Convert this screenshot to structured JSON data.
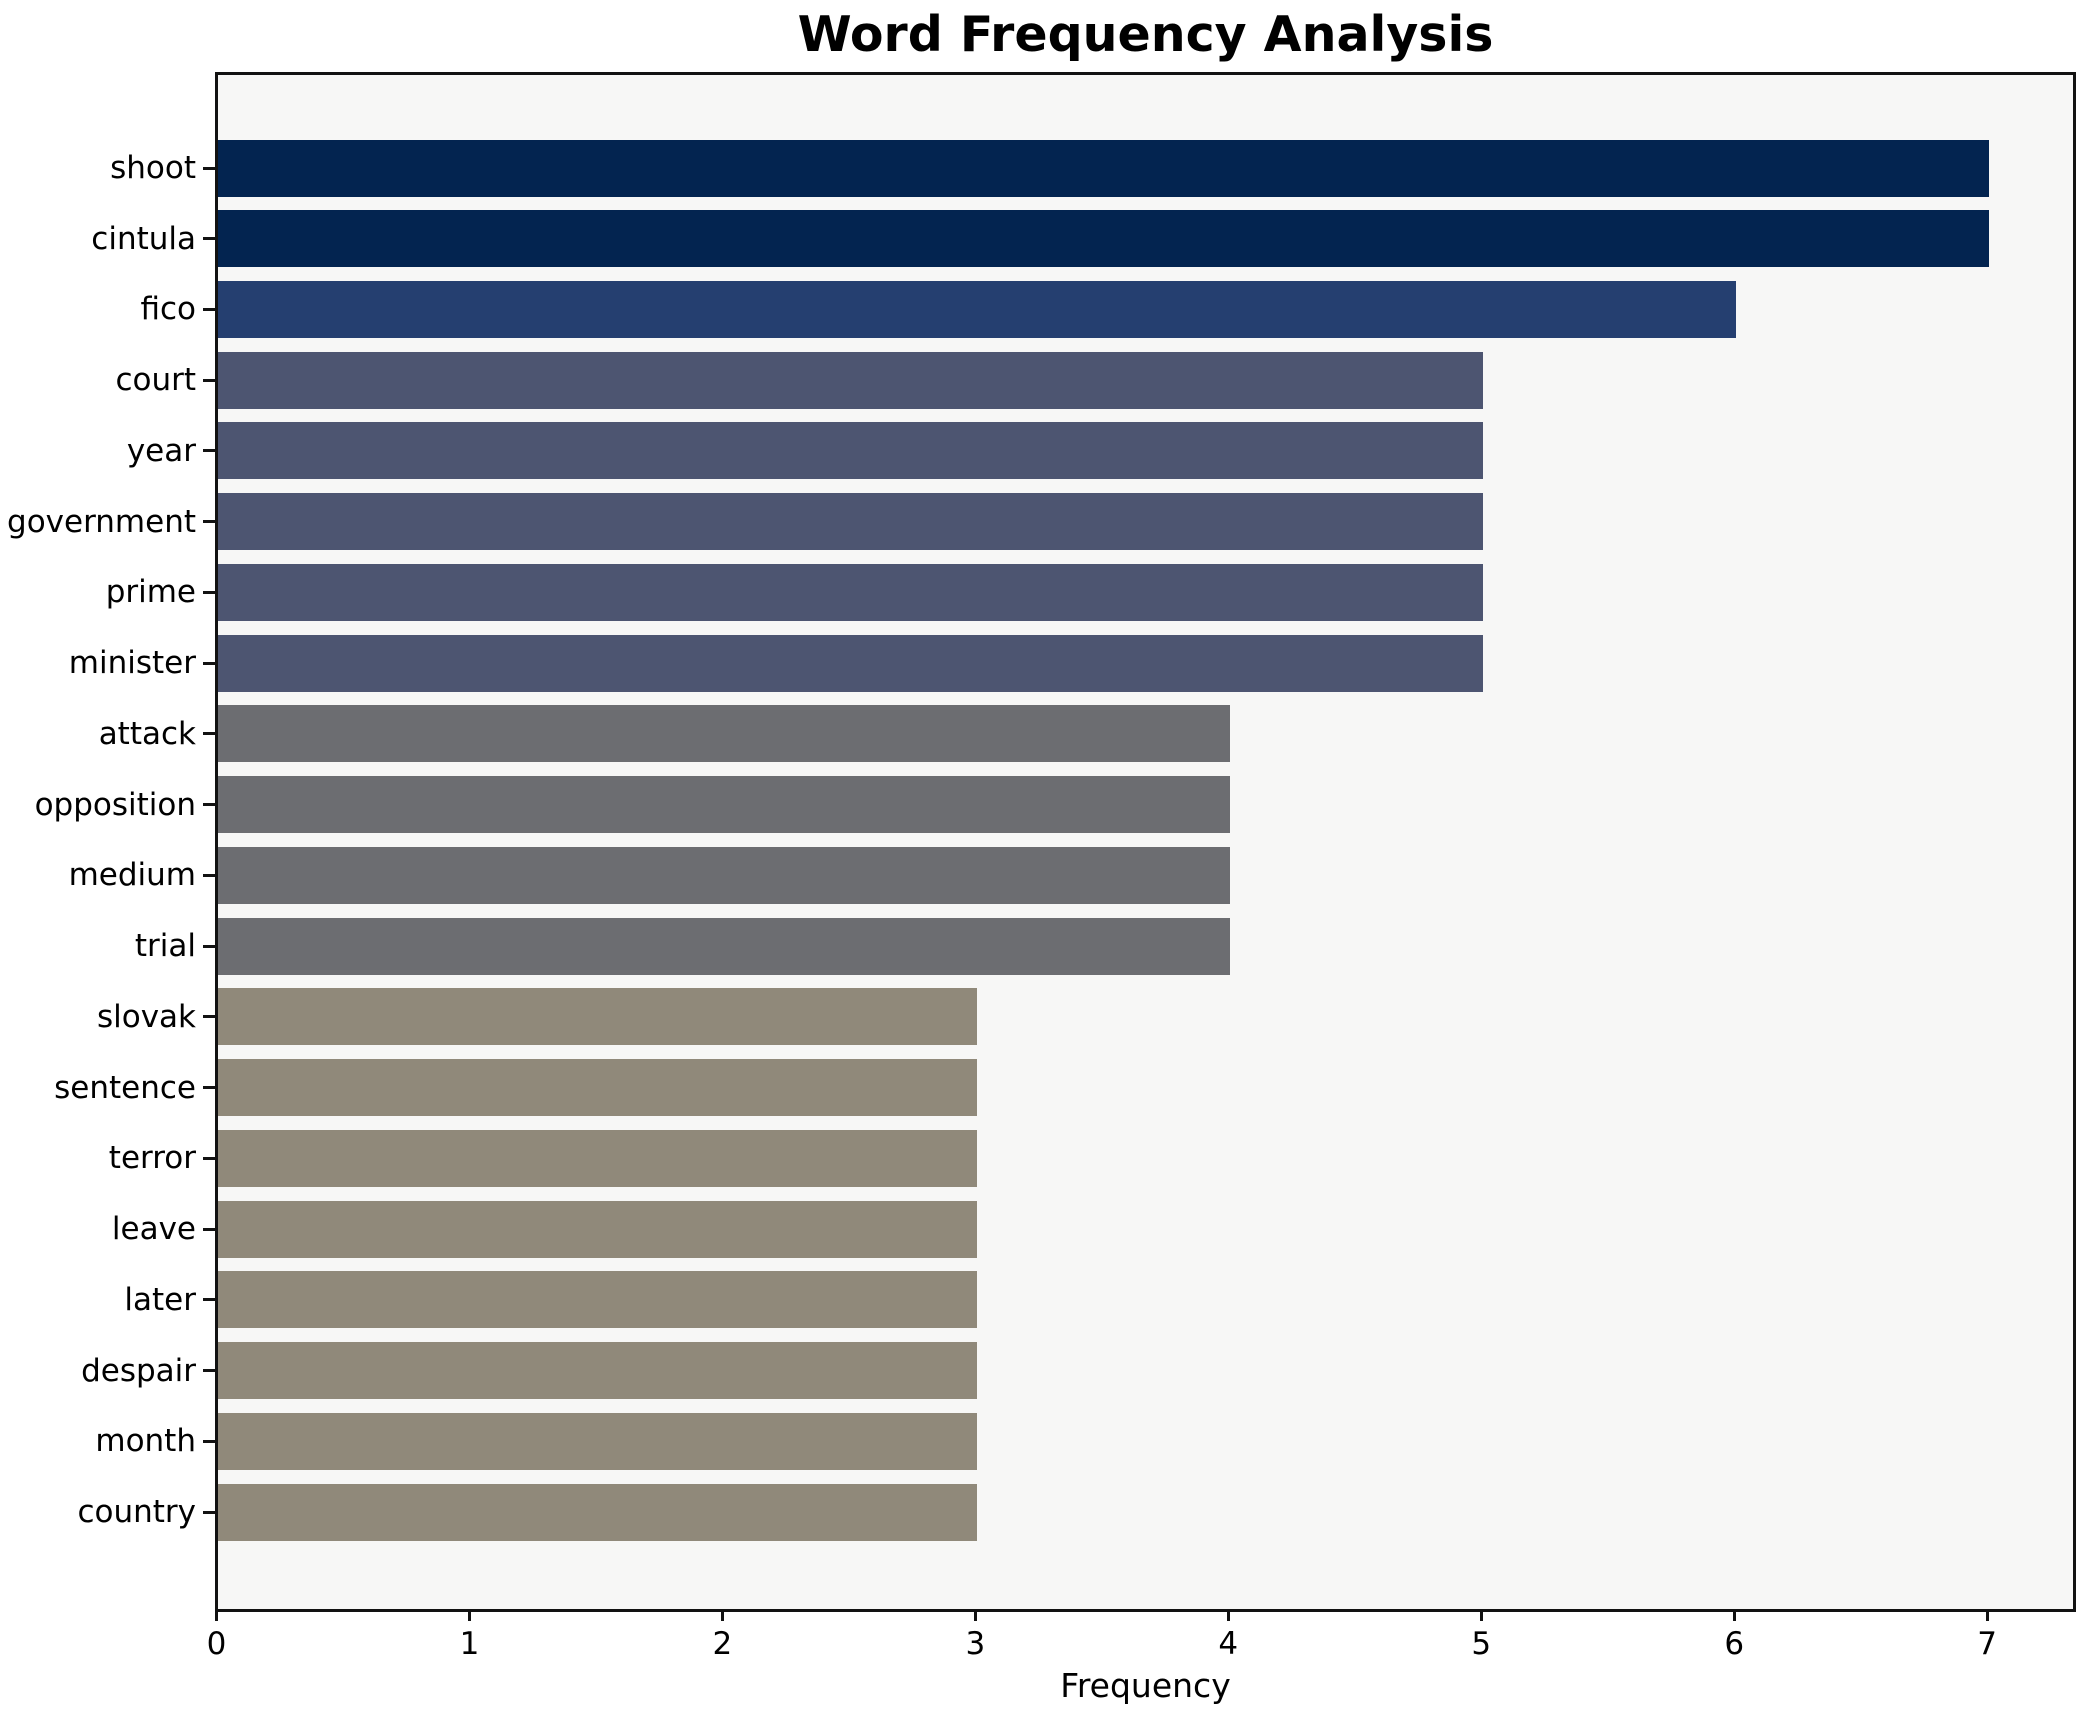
{
  "chart_data": {
    "type": "bar",
    "orientation": "horizontal",
    "title": "Word Frequency Analysis",
    "xlabel": "Frequency",
    "ylabel": "",
    "xlim": [
      0,
      7.35
    ],
    "x_ticks": [
      "0",
      "1",
      "2",
      "3",
      "4",
      "5",
      "6",
      "7"
    ],
    "grid": false,
    "legend": "none",
    "plot_background": "#f7f7f6",
    "figure_background": "#ffffff",
    "spine_color": "#121212",
    "categories": [
      "shoot",
      "cintula",
      "fico",
      "court",
      "year",
      "government",
      "prime",
      "minister",
      "attack",
      "opposition",
      "medium",
      "trial",
      "slovak",
      "sentence",
      "terror",
      "leave",
      "later",
      "despair",
      "month",
      "country"
    ],
    "values": [
      7,
      7,
      6,
      5,
      5,
      5,
      5,
      5,
      4,
      4,
      4,
      4,
      3,
      3,
      3,
      3,
      3,
      3,
      3,
      3
    ],
    "bar_colors": [
      "#032450",
      "#032450",
      "#253f70",
      "#4d5571",
      "#4d5571",
      "#4d5571",
      "#4d5571",
      "#4d5571",
      "#6c6d71",
      "#6c6d71",
      "#6c6d71",
      "#6c6d71",
      "#90897a",
      "#90897a",
      "#90897a",
      "#90897a",
      "#90897a",
      "#90897a",
      "#90897a",
      "#90897a"
    ]
  }
}
